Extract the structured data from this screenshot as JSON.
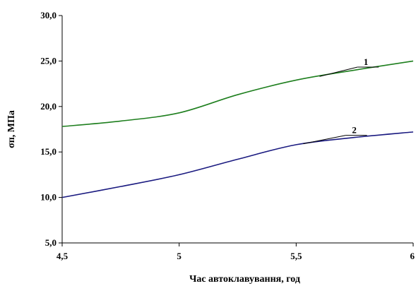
{
  "chart_data": {
    "type": "line",
    "xlabel": "Час автоклавування, год",
    "ylabel": "σп, МПа",
    "xlim": [
      4.5,
      6
    ],
    "ylim": [
      5,
      30
    ],
    "xticks": [
      4.5,
      5,
      5.5,
      6
    ],
    "xtick_labels": [
      "4,5",
      "5",
      "5,5",
      "6"
    ],
    "yticks": [
      5,
      10,
      15,
      20,
      25,
      30
    ],
    "ytick_labels": [
      "5,0",
      "10,0",
      "15,0",
      "20,0",
      "25,0",
      "30,0"
    ],
    "grid": false,
    "series": [
      {
        "name": "1",
        "color": "#1e7f1e",
        "x": [
          4.5,
          4.75,
          5.0,
          5.25,
          5.5,
          5.75,
          6.0
        ],
        "y": [
          17.8,
          18.4,
          19.3,
          21.3,
          22.9,
          24.0,
          25.0
        ],
        "label_anchor": [
          5.6,
          23.3
        ],
        "label_pos": [
          5.75,
          24.8
        ]
      },
      {
        "name": "2",
        "color": "#1a1a80",
        "x": [
          4.5,
          4.75,
          5.0,
          5.25,
          5.5,
          5.75,
          6.0
        ],
        "y": [
          10.0,
          11.2,
          12.5,
          14.2,
          15.8,
          16.6,
          17.2
        ],
        "label_anchor": [
          5.53,
          15.9
        ],
        "label_pos": [
          5.7,
          17.3
        ]
      }
    ]
  }
}
